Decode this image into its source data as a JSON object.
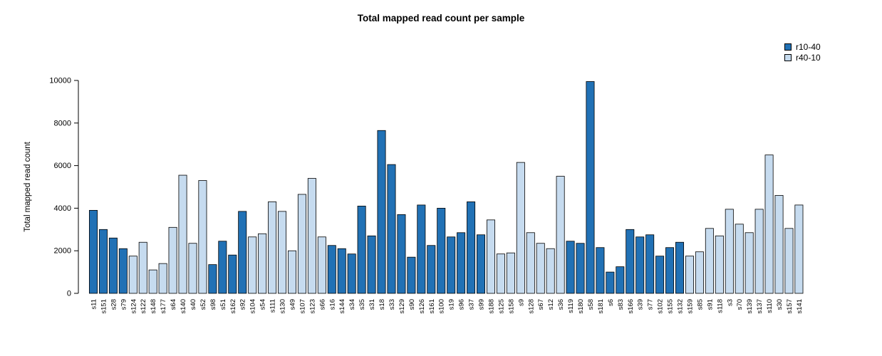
{
  "chart_data": {
    "type": "bar",
    "title": "Total mapped read count per sample",
    "ylabel": "Total mapped read count",
    "xlabel": "",
    "ylim": [
      0,
      10000
    ],
    "yticks": [
      0,
      2000,
      4000,
      6000,
      8000,
      10000
    ],
    "grid": false,
    "legend_position": "top-right",
    "bar_border_color": "#000000",
    "groups": [
      {
        "name": "r10-40",
        "color": "#2171B5"
      },
      {
        "name": "r40-10",
        "color": "#C6DBEF"
      }
    ],
    "samples": [
      {
        "name": "s11",
        "value": 3900,
        "group": "r10-40"
      },
      {
        "name": "s151",
        "value": 3000,
        "group": "r10-40"
      },
      {
        "name": "s28",
        "value": 2600,
        "group": "r10-40"
      },
      {
        "name": "s79",
        "value": 2100,
        "group": "r10-40"
      },
      {
        "name": "s124",
        "value": 1750,
        "group": "r40-10"
      },
      {
        "name": "s122",
        "value": 2400,
        "group": "r40-10"
      },
      {
        "name": "s148",
        "value": 1100,
        "group": "r40-10"
      },
      {
        "name": "s177",
        "value": 1400,
        "group": "r40-10"
      },
      {
        "name": "s64",
        "value": 3100,
        "group": "r40-10"
      },
      {
        "name": "s140",
        "value": 5550,
        "group": "r40-10"
      },
      {
        "name": "s40",
        "value": 2350,
        "group": "r40-10"
      },
      {
        "name": "s52",
        "value": 5300,
        "group": "r40-10"
      },
      {
        "name": "s98",
        "value": 1350,
        "group": "r10-40"
      },
      {
        "name": "s51",
        "value": 2450,
        "group": "r10-40"
      },
      {
        "name": "s162",
        "value": 1800,
        "group": "r10-40"
      },
      {
        "name": "s92",
        "value": 3850,
        "group": "r10-40"
      },
      {
        "name": "s104",
        "value": 2650,
        "group": "r40-10"
      },
      {
        "name": "s54",
        "value": 2800,
        "group": "r40-10"
      },
      {
        "name": "s111",
        "value": 4300,
        "group": "r40-10"
      },
      {
        "name": "s130",
        "value": 3850,
        "group": "r40-10"
      },
      {
        "name": "s49",
        "value": 2000,
        "group": "r40-10"
      },
      {
        "name": "s107",
        "value": 4650,
        "group": "r40-10"
      },
      {
        "name": "s123",
        "value": 5400,
        "group": "r40-10"
      },
      {
        "name": "s66",
        "value": 2650,
        "group": "r40-10"
      },
      {
        "name": "s16",
        "value": 2250,
        "group": "r10-40"
      },
      {
        "name": "s144",
        "value": 2100,
        "group": "r10-40"
      },
      {
        "name": "s34",
        "value": 1850,
        "group": "r10-40"
      },
      {
        "name": "s35",
        "value": 4100,
        "group": "r10-40"
      },
      {
        "name": "s31",
        "value": 2700,
        "group": "r10-40"
      },
      {
        "name": "s18",
        "value": 7650,
        "group": "r10-40"
      },
      {
        "name": "s33",
        "value": 6050,
        "group": "r10-40"
      },
      {
        "name": "s129",
        "value": 3700,
        "group": "r10-40"
      },
      {
        "name": "s90",
        "value": 1700,
        "group": "r10-40"
      },
      {
        "name": "s126",
        "value": 4150,
        "group": "r10-40"
      },
      {
        "name": "s161",
        "value": 2250,
        "group": "r10-40"
      },
      {
        "name": "s100",
        "value": 4000,
        "group": "r10-40"
      },
      {
        "name": "s19",
        "value": 2650,
        "group": "r10-40"
      },
      {
        "name": "s96",
        "value": 2850,
        "group": "r10-40"
      },
      {
        "name": "s37",
        "value": 4300,
        "group": "r10-40"
      },
      {
        "name": "s99",
        "value": 2750,
        "group": "r10-40"
      },
      {
        "name": "s188",
        "value": 3450,
        "group": "r40-10"
      },
      {
        "name": "s125",
        "value": 1850,
        "group": "r40-10"
      },
      {
        "name": "s158",
        "value": 1900,
        "group": "r40-10"
      },
      {
        "name": "s9",
        "value": 6150,
        "group": "r40-10"
      },
      {
        "name": "s128",
        "value": 2850,
        "group": "r40-10"
      },
      {
        "name": "s67",
        "value": 2350,
        "group": "r40-10"
      },
      {
        "name": "s12",
        "value": 2100,
        "group": "r40-10"
      },
      {
        "name": "s36",
        "value": 5500,
        "group": "r40-10"
      },
      {
        "name": "s119",
        "value": 2450,
        "group": "r10-40"
      },
      {
        "name": "s180",
        "value": 2350,
        "group": "r10-40"
      },
      {
        "name": "s58",
        "value": 9950,
        "group": "r10-40"
      },
      {
        "name": "s181",
        "value": 2150,
        "group": "r10-40"
      },
      {
        "name": "s6",
        "value": 1000,
        "group": "r10-40"
      },
      {
        "name": "s83",
        "value": 1250,
        "group": "r10-40"
      },
      {
        "name": "s166",
        "value": 3000,
        "group": "r10-40"
      },
      {
        "name": "s39",
        "value": 2650,
        "group": "r10-40"
      },
      {
        "name": "s77",
        "value": 2750,
        "group": "r10-40"
      },
      {
        "name": "s102",
        "value": 1750,
        "group": "r10-40"
      },
      {
        "name": "s155",
        "value": 2150,
        "group": "r10-40"
      },
      {
        "name": "s132",
        "value": 2400,
        "group": "r10-40"
      },
      {
        "name": "s159",
        "value": 1750,
        "group": "r40-10"
      },
      {
        "name": "s85",
        "value": 1950,
        "group": "r40-10"
      },
      {
        "name": "s91",
        "value": 3050,
        "group": "r40-10"
      },
      {
        "name": "s118",
        "value": 2700,
        "group": "r40-10"
      },
      {
        "name": "s3",
        "value": 3950,
        "group": "r40-10"
      },
      {
        "name": "s70",
        "value": 3250,
        "group": "r40-10"
      },
      {
        "name": "s139",
        "value": 2850,
        "group": "r40-10"
      },
      {
        "name": "s137",
        "value": 3950,
        "group": "r40-10"
      },
      {
        "name": "s110",
        "value": 6500,
        "group": "r40-10"
      },
      {
        "name": "s30",
        "value": 4600,
        "group": "r40-10"
      },
      {
        "name": "s157",
        "value": 3050,
        "group": "r40-10"
      },
      {
        "name": "s141",
        "value": 4150,
        "group": "r40-10"
      }
    ]
  }
}
